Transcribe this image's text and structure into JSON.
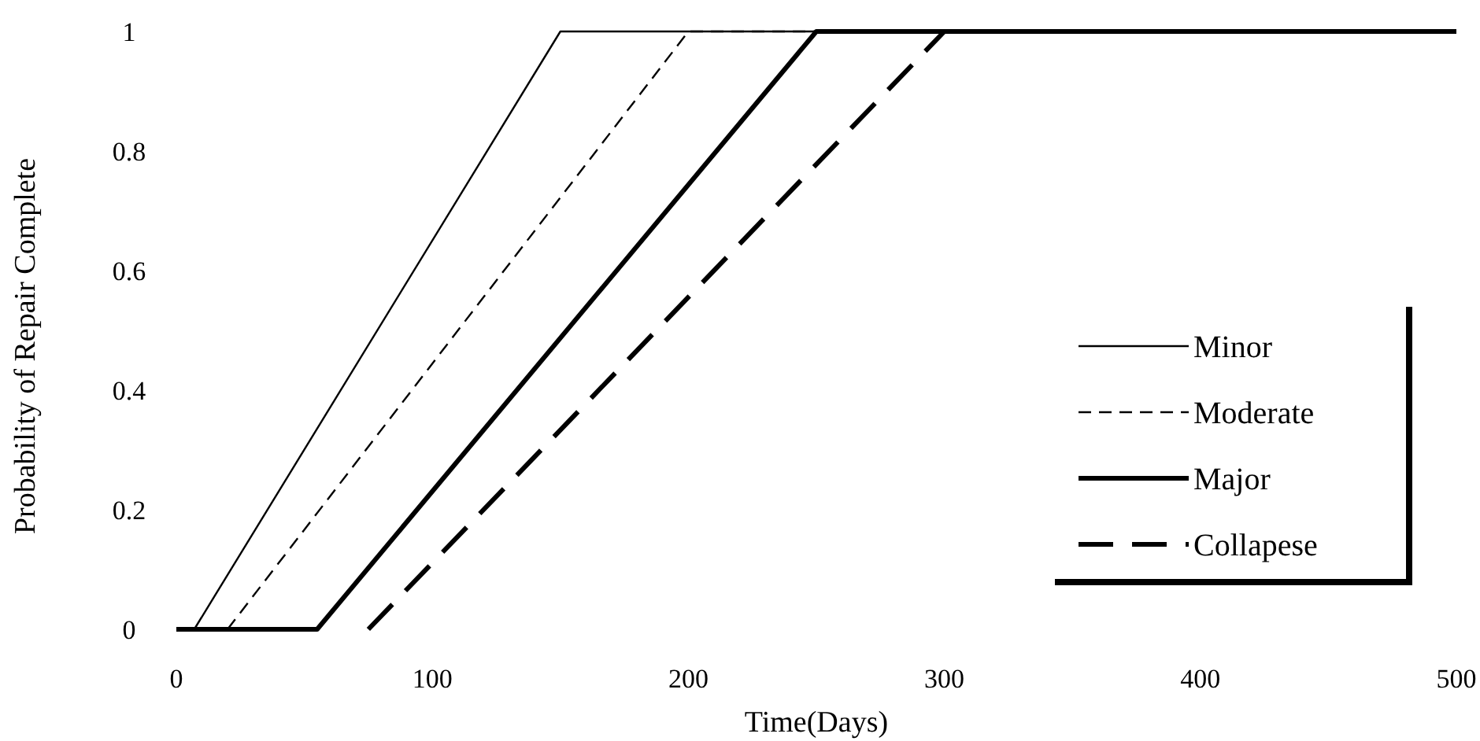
{
  "chart_data": {
    "type": "line",
    "xlabel": "Time(Days)",
    "ylabel": "Probability of Repair Complete",
    "xlim": [
      0,
      500
    ],
    "xticks": [
      0,
      100,
      200,
      300,
      400,
      500
    ],
    "ylim": [
      0,
      1
    ],
    "yticks": [
      0,
      0.2,
      0.4,
      0.6,
      0.8,
      1
    ],
    "legend": "bottom right",
    "marker": "none",
    "series": [
      {
        "name": "Minor",
        "color": "#000000",
        "x": [
          0,
          7,
          150,
          500
        ],
        "values": [
          0,
          0,
          1,
          1
        ],
        "line_style": "solid"
      },
      {
        "name": "Moderate",
        "color": "#000000",
        "x": [
          20,
          200,
          500
        ],
        "values": [
          0,
          1,
          1
        ],
        "line_style": "dashed"
      },
      {
        "name": "Major",
        "color": "#000000",
        "x": [
          0,
          55,
          250,
          500
        ],
        "values": [
          0,
          0,
          1,
          1
        ],
        "line_style": "solid"
      },
      {
        "name": "Collapese",
        "color": "#000000",
        "x": [
          75,
          300,
          500
        ],
        "values": [
          0,
          1,
          1
        ],
        "line_style": "dashed"
      }
    ]
  }
}
